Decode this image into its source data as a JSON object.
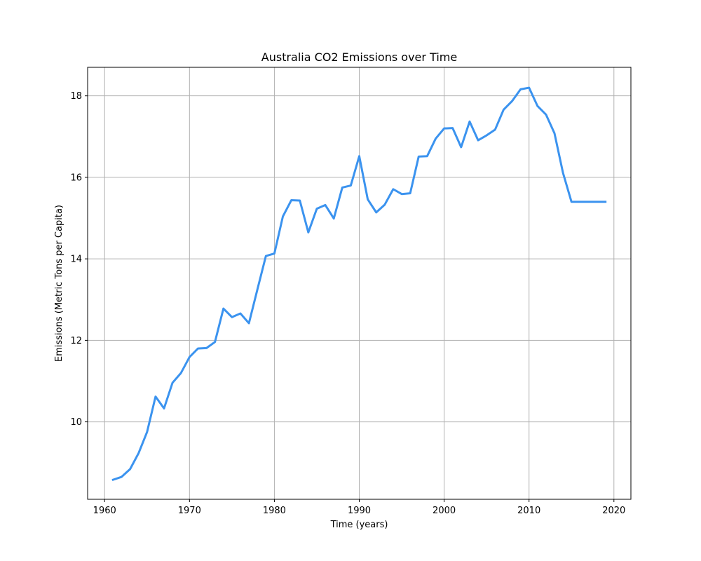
{
  "chart_data": {
    "type": "line",
    "title": "Australia CO2 Emissions over Time",
    "xlabel": "Time (years)",
    "ylabel": "Emissions (Metric Tons per Capita)",
    "xlim": [
      1958,
      2022
    ],
    "ylim": [
      8.1,
      18.7
    ],
    "xticks": [
      1960,
      1970,
      1980,
      1990,
      2000,
      2010,
      2020
    ],
    "yticks": [
      10,
      12,
      14,
      16,
      18
    ],
    "grid": true,
    "line_color": "#3b93ef",
    "series": [
      {
        "x": [
          1961,
          1962,
          1963,
          1964,
          1965,
          1966,
          1967,
          1968,
          1969,
          1970,
          1971,
          1972,
          1973,
          1974,
          1975,
          1976,
          1977,
          1978,
          1979,
          1980,
          1981,
          1982,
          1983,
          1984,
          1985,
          1986,
          1987,
          1988,
          1989,
          1990,
          1991,
          1992,
          1993,
          1994,
          1995,
          1996,
          1997,
          1998,
          1999,
          2000,
          2001,
          2002,
          2003,
          2004,
          2005,
          2006,
          2007,
          2008,
          2009,
          2010,
          2011,
          2012,
          2013,
          2014,
          2015,
          2016,
          2017,
          2018,
          2019
        ],
        "values": [
          8.58,
          8.65,
          8.84,
          9.23,
          9.75,
          10.62,
          10.33,
          10.96,
          11.2,
          11.59,
          11.8,
          11.81,
          11.96,
          12.78,
          12.57,
          12.66,
          12.42,
          13.25,
          14.07,
          14.13,
          15.04,
          15.44,
          15.43,
          14.65,
          15.23,
          15.32,
          14.99,
          15.75,
          15.8,
          16.52,
          15.46,
          15.14,
          15.33,
          15.71,
          15.59,
          15.61,
          16.51,
          16.52,
          16.95,
          17.2,
          17.21,
          16.74,
          17.37,
          16.91,
          17.03,
          17.17,
          17.66,
          17.87,
          18.16,
          18.2,
          17.75,
          17.54,
          17.08,
          16.11,
          15.4,
          15.4,
          15.4,
          15.4,
          15.4
        ]
      }
    ]
  }
}
